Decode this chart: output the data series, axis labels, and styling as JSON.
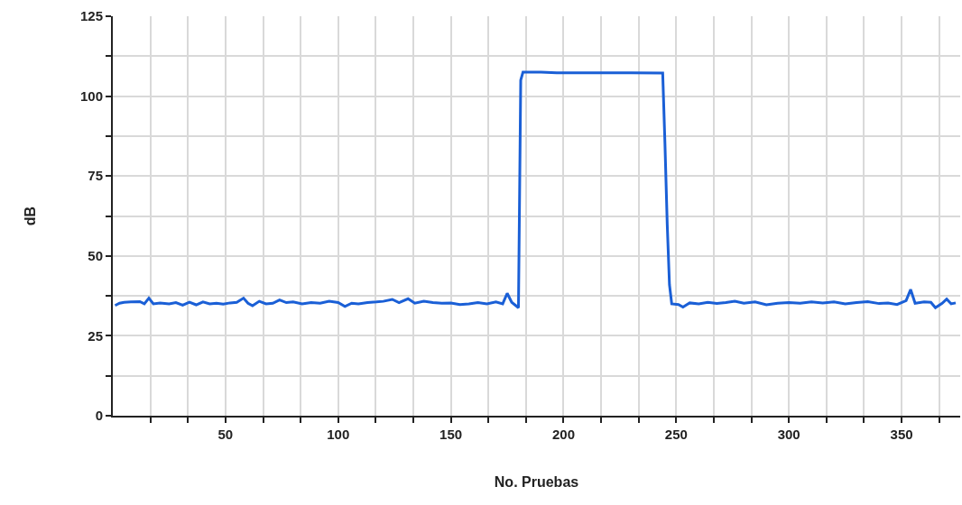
{
  "chart_data": {
    "type": "line",
    "xlabel": "No. Pruebas",
    "ylabel": "dB",
    "x": [
      1,
      3,
      5,
      8,
      12,
      14,
      16,
      18,
      21,
      25,
      28,
      31,
      34,
      37,
      40,
      43,
      46,
      49,
      52,
      55,
      58,
      60,
      62,
      65,
      68,
      71,
      74,
      77,
      80,
      84,
      88,
      92,
      96,
      100,
      103,
      106,
      109,
      113,
      117,
      120,
      124,
      127,
      131,
      134,
      138,
      142,
      146,
      150,
      154,
      158,
      162,
      166,
      170,
      173,
      175,
      177,
      180,
      181,
      182,
      190,
      197,
      210,
      230,
      244,
      245,
      246,
      247,
      248,
      251,
      253,
      256,
      260,
      264,
      268,
      272,
      276,
      280,
      285,
      290,
      295,
      300,
      305,
      310,
      315,
      320,
      325,
      330,
      335,
      340,
      344,
      348,
      352,
      354,
      356,
      360,
      363,
      365,
      368,
      370,
      372,
      374
    ],
    "series": [
      {
        "color": "#1a5fd6",
        "values": [
          34.5,
          35.2,
          35.5,
          35.6,
          35.7,
          35,
          36.8,
          35,
          35.3,
          35,
          35.4,
          34.6,
          35.5,
          34.7,
          35.6,
          35,
          35.2,
          34.9,
          35.3,
          35.5,
          36.8,
          35.2,
          34.4,
          35.8,
          35,
          35.2,
          36.2,
          35.4,
          35.6,
          35,
          35.4,
          35.2,
          35.8,
          35.4,
          34.2,
          35.2,
          35,
          35.4,
          35.6,
          35.8,
          36.4,
          35.4,
          36.6,
          35.2,
          35.8,
          35.4,
          35.2,
          35.3,
          34.8,
          35,
          35.4,
          35,
          35.6,
          35,
          38.3,
          35.5,
          33.8,
          105,
          107.5,
          107.5,
          107.3,
          107.3,
          107.3,
          107.2,
          85,
          60,
          41,
          35,
          34.8,
          34,
          35.3,
          35,
          35.5,
          35.1,
          35.4,
          35.8,
          35.2,
          35.6,
          34.7,
          35.2,
          35.4,
          35.2,
          35.6,
          35.3,
          35.6,
          35,
          35.4,
          35.7,
          35.1,
          35.3,
          34.8,
          36,
          39.5,
          35.2,
          35.6,
          35.5,
          33.8,
          35.2,
          36.5,
          35,
          35.3
        ]
      }
    ],
    "xlim": [
      0,
      376
    ],
    "ylim": [
      0,
      125
    ],
    "xticks": [
      {
        "value": 16.67,
        "label": null
      },
      {
        "value": 33.33,
        "label": null
      },
      50,
      {
        "value": 66.67,
        "label": null
      },
      {
        "value": 83.33,
        "label": null
      },
      100,
      {
        "value": 116.67,
        "label": null
      },
      {
        "value": 133.33,
        "label": null
      },
      150,
      {
        "value": 166.67,
        "label": null
      },
      {
        "value": 183.33,
        "label": null
      },
      200,
      {
        "value": 216.67,
        "label": null
      },
      {
        "value": 233.33,
        "label": null
      },
      250,
      {
        "value": 266.67,
        "label": null
      },
      {
        "value": 283.33,
        "label": null
      },
      300,
      {
        "value": 316.67,
        "label": null
      },
      {
        "value": 333.33,
        "label": null
      },
      350,
      {
        "value": 366.67,
        "label": null
      }
    ],
    "yticks": [
      0,
      {
        "value": 12.5,
        "label": null
      },
      25,
      {
        "value": 37.5,
        "label": null
      },
      50,
      {
        "value": 62.5,
        "label": null
      },
      75,
      {
        "value": 87.5,
        "label": null
      },
      100,
      {
        "value": 112.5,
        "label": null
      },
      125
    ],
    "grid": true,
    "marker": "none",
    "line_style": "solid"
  }
}
